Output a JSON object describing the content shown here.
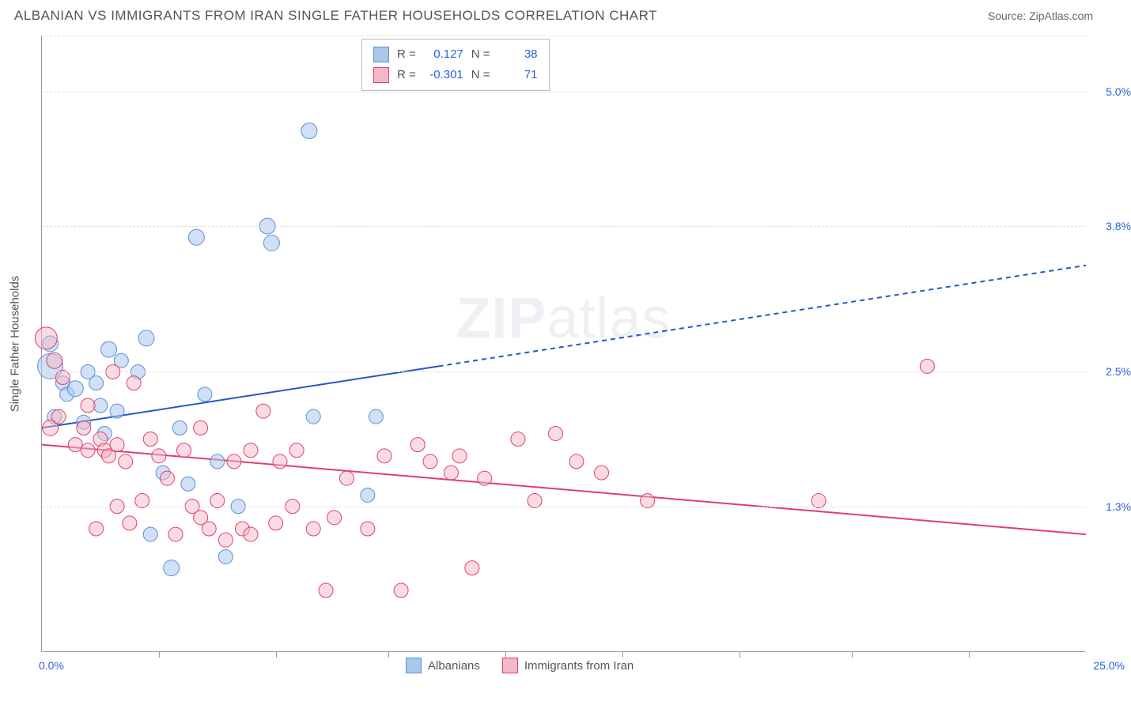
{
  "header": {
    "title": "ALBANIAN VS IMMIGRANTS FROM IRAN SINGLE FATHER HOUSEHOLDS CORRELATION CHART",
    "source_prefix": "Source: ",
    "source_name": "ZipAtlas.com"
  },
  "chart": {
    "type": "scatter",
    "y_axis_title": "Single Father Households",
    "x_origin_label": "0.0%",
    "x_max_label": "25.0%",
    "background_color": "#ffffff",
    "grid_color": "#dddddd",
    "axis_color": "#999999",
    "value_color": "#2962d9",
    "xlim": [
      0,
      25
    ],
    "ylim": [
      0,
      5.5
    ],
    "y_ticks": [
      {
        "v": 1.3,
        "label": "1.3%"
      },
      {
        "v": 2.5,
        "label": "2.5%"
      },
      {
        "v": 3.8,
        "label": "3.8%"
      },
      {
        "v": 5.0,
        "label": "5.0%"
      }
    ],
    "x_tick_positions": [
      2.8,
      5.6,
      8.3,
      11.1,
      13.9,
      16.7,
      19.4,
      22.2
    ],
    "watermark": {
      "zip": "ZIP",
      "atlas": "atlas"
    },
    "series": [
      {
        "name": "Albanians",
        "fill": "#a9c6ec",
        "stroke": "#5b8fd6",
        "fill_opacity": 0.55,
        "marker_r_base": 9,
        "r_label": "R =",
        "r_value": "0.127",
        "n_label": "N =",
        "n_value": "38",
        "trend": {
          "x1": 0,
          "y1": 2.0,
          "x2_solid": 9.5,
          "y2_solid": 2.55,
          "x2": 25,
          "y2": 3.45,
          "color": "#2458c5",
          "width": 2
        },
        "points": [
          {
            "x": 0.2,
            "y": 2.55,
            "r": 16
          },
          {
            "x": 0.2,
            "y": 2.75,
            "r": 10
          },
          {
            "x": 0.3,
            "y": 2.1,
            "r": 9
          },
          {
            "x": 0.5,
            "y": 2.4,
            "r": 9
          },
          {
            "x": 0.6,
            "y": 2.3,
            "r": 9
          },
          {
            "x": 0.8,
            "y": 2.35,
            "r": 10
          },
          {
            "x": 1.0,
            "y": 2.05,
            "r": 9
          },
          {
            "x": 1.1,
            "y": 2.5,
            "r": 9
          },
          {
            "x": 1.3,
            "y": 2.4,
            "r": 9
          },
          {
            "x": 1.4,
            "y": 2.2,
            "r": 9
          },
          {
            "x": 1.5,
            "y": 1.95,
            "r": 9
          },
          {
            "x": 1.6,
            "y": 2.7,
            "r": 10
          },
          {
            "x": 1.8,
            "y": 2.15,
            "r": 9
          },
          {
            "x": 1.9,
            "y": 2.6,
            "r": 9
          },
          {
            "x": 2.3,
            "y": 2.5,
            "r": 9
          },
          {
            "x": 2.5,
            "y": 2.8,
            "r": 10
          },
          {
            "x": 2.6,
            "y": 1.05,
            "r": 9
          },
          {
            "x": 2.9,
            "y": 1.6,
            "r": 9
          },
          {
            "x": 3.1,
            "y": 0.75,
            "r": 10
          },
          {
            "x": 3.3,
            "y": 2.0,
            "r": 9
          },
          {
            "x": 3.5,
            "y": 1.5,
            "r": 9
          },
          {
            "x": 3.7,
            "y": 3.7,
            "r": 10
          },
          {
            "x": 3.9,
            "y": 2.3,
            "r": 9
          },
          {
            "x": 4.2,
            "y": 1.7,
            "r": 9
          },
          {
            "x": 4.4,
            "y": 0.85,
            "r": 9
          },
          {
            "x": 4.7,
            "y": 1.3,
            "r": 9
          },
          {
            "x": 5.4,
            "y": 3.8,
            "r": 10
          },
          {
            "x": 5.5,
            "y": 3.65,
            "r": 10
          },
          {
            "x": 6.4,
            "y": 4.65,
            "r": 10
          },
          {
            "x": 6.5,
            "y": 2.1,
            "r": 9
          },
          {
            "x": 7.8,
            "y": 1.4,
            "r": 9
          },
          {
            "x": 8.0,
            "y": 2.1,
            "r": 9
          }
        ]
      },
      {
        "name": "Immigrants from Iran",
        "fill": "#f4b7c6",
        "stroke": "#e23e6e",
        "fill_opacity": 0.5,
        "marker_r_base": 9,
        "r_label": "R =",
        "r_value": "-0.301",
        "n_label": "N =",
        "n_value": "71",
        "trend": {
          "x1": 0,
          "y1": 1.85,
          "x2_solid": 25,
          "y2_solid": 1.05,
          "x2": 25,
          "y2": 1.05,
          "color": "#e23e6e",
          "width": 2
        },
        "points": [
          {
            "x": 0.1,
            "y": 2.8,
            "r": 14
          },
          {
            "x": 0.2,
            "y": 2.0,
            "r": 10
          },
          {
            "x": 0.3,
            "y": 2.6,
            "r": 10
          },
          {
            "x": 0.4,
            "y": 2.1,
            "r": 9
          },
          {
            "x": 0.5,
            "y": 2.45,
            "r": 9
          },
          {
            "x": 0.8,
            "y": 1.85,
            "r": 9
          },
          {
            "x": 1.0,
            "y": 2.0,
            "r": 9
          },
          {
            "x": 1.1,
            "y": 2.2,
            "r": 9
          },
          {
            "x": 1.1,
            "y": 1.8,
            "r": 9
          },
          {
            "x": 1.3,
            "y": 1.1,
            "r": 9
          },
          {
            "x": 1.4,
            "y": 1.9,
            "r": 9
          },
          {
            "x": 1.5,
            "y": 1.8,
            "r": 9
          },
          {
            "x": 1.6,
            "y": 1.75,
            "r": 9
          },
          {
            "x": 1.7,
            "y": 2.5,
            "r": 9
          },
          {
            "x": 1.8,
            "y": 1.3,
            "r": 9
          },
          {
            "x": 1.8,
            "y": 1.85,
            "r": 9
          },
          {
            "x": 2.0,
            "y": 1.7,
            "r": 9
          },
          {
            "x": 2.1,
            "y": 1.15,
            "r": 9
          },
          {
            "x": 2.2,
            "y": 2.4,
            "r": 9
          },
          {
            "x": 2.4,
            "y": 1.35,
            "r": 9
          },
          {
            "x": 2.6,
            "y": 1.9,
            "r": 9
          },
          {
            "x": 2.8,
            "y": 1.75,
            "r": 9
          },
          {
            "x": 3.0,
            "y": 1.55,
            "r": 9
          },
          {
            "x": 3.2,
            "y": 1.05,
            "r": 9
          },
          {
            "x": 3.4,
            "y": 1.8,
            "r": 9
          },
          {
            "x": 3.6,
            "y": 1.3,
            "r": 9
          },
          {
            "x": 3.8,
            "y": 2.0,
            "r": 9
          },
          {
            "x": 3.8,
            "y": 1.2,
            "r": 9
          },
          {
            "x": 4.0,
            "y": 1.1,
            "r": 9
          },
          {
            "x": 4.2,
            "y": 1.35,
            "r": 9
          },
          {
            "x": 4.4,
            "y": 1.0,
            "r": 9
          },
          {
            "x": 4.6,
            "y": 1.7,
            "r": 9
          },
          {
            "x": 4.8,
            "y": 1.1,
            "r": 9
          },
          {
            "x": 5.0,
            "y": 1.8,
            "r": 9
          },
          {
            "x": 5.0,
            "y": 1.05,
            "r": 9
          },
          {
            "x": 5.3,
            "y": 2.15,
            "r": 9
          },
          {
            "x": 5.6,
            "y": 1.15,
            "r": 9
          },
          {
            "x": 5.7,
            "y": 1.7,
            "r": 9
          },
          {
            "x": 6.0,
            "y": 1.3,
            "r": 9
          },
          {
            "x": 6.1,
            "y": 1.8,
            "r": 9
          },
          {
            "x": 6.5,
            "y": 1.1,
            "r": 9
          },
          {
            "x": 6.8,
            "y": 0.55,
            "r": 9
          },
          {
            "x": 7.0,
            "y": 1.2,
            "r": 9
          },
          {
            "x": 7.3,
            "y": 1.55,
            "r": 9
          },
          {
            "x": 7.8,
            "y": 1.1,
            "r": 9
          },
          {
            "x": 8.2,
            "y": 1.75,
            "r": 9
          },
          {
            "x": 8.6,
            "y": 0.55,
            "r": 9
          },
          {
            "x": 9.0,
            "y": 1.85,
            "r": 9
          },
          {
            "x": 9.3,
            "y": 1.7,
            "r": 9
          },
          {
            "x": 9.8,
            "y": 1.6,
            "r": 9
          },
          {
            "x": 10.0,
            "y": 1.75,
            "r": 9
          },
          {
            "x": 10.3,
            "y": 0.75,
            "r": 9
          },
          {
            "x": 10.6,
            "y": 1.55,
            "r": 9
          },
          {
            "x": 11.4,
            "y": 1.9,
            "r": 9
          },
          {
            "x": 11.8,
            "y": 1.35,
            "r": 9
          },
          {
            "x": 12.3,
            "y": 1.95,
            "r": 9
          },
          {
            "x": 12.8,
            "y": 1.7,
            "r": 9
          },
          {
            "x": 13.4,
            "y": 1.6,
            "r": 9
          },
          {
            "x": 14.5,
            "y": 1.35,
            "r": 9
          },
          {
            "x": 18.6,
            "y": 1.35,
            "r": 9
          },
          {
            "x": 21.2,
            "y": 2.55,
            "r": 9
          }
        ]
      }
    ]
  }
}
